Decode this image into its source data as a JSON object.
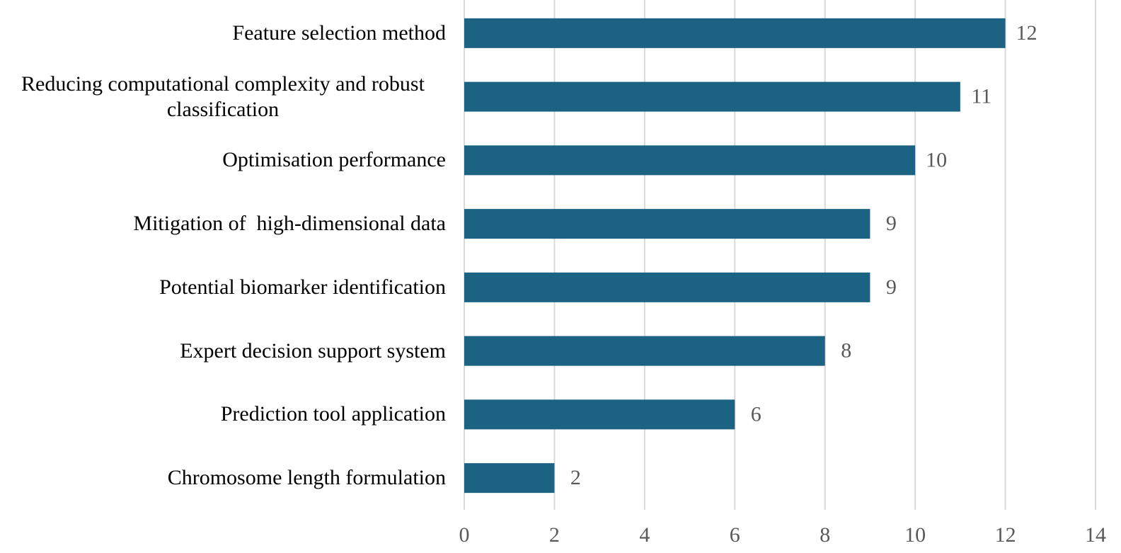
{
  "chart_data": {
    "type": "bar",
    "orientation": "horizontal",
    "categories": [
      "Feature selection method",
      "Reducing computational complexity and robust classification",
      "Optimisation performance",
      "Mitigation of  high-dimensional data",
      "Potential biomarker identification",
      "Expert decision support system",
      "Prediction tool application",
      "Chromosome length formulation"
    ],
    "values": [
      12,
      11,
      10,
      9,
      9,
      8,
      6,
      2
    ],
    "color": "#1b6283",
    "xlim": [
      0,
      14
    ],
    "xticks": [
      0,
      2,
      4,
      6,
      8,
      10,
      12,
      14
    ],
    "grid": true
  }
}
